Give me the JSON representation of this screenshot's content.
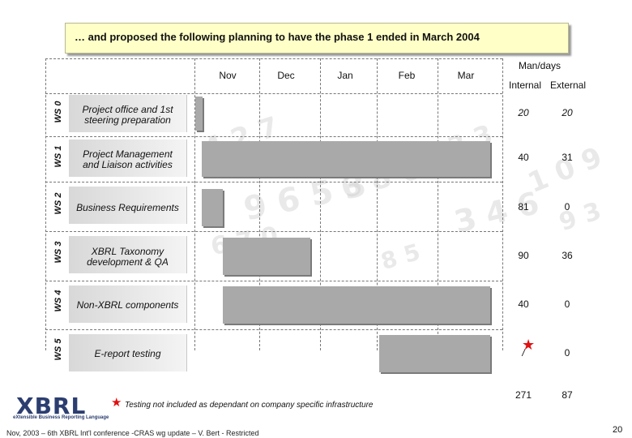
{
  "title": "… and proposed the following planning to have the phase 1 ended in March 2004",
  "months": [
    "Nov",
    "Dec",
    "Jan",
    "Feb",
    "Mar"
  ],
  "manday_header": "Man/days",
  "col_internal": "Internal",
  "col_external": "External",
  "rows": [
    {
      "ws": "WS 0",
      "task_line1": "Project office and 1st",
      "task_line2": "steering preparation",
      "internal": "20",
      "external": "20",
      "italic_values": true
    },
    {
      "ws": "WS 1",
      "task_line1": "Project Management",
      "task_line2": "and Liaison activities",
      "internal": "40",
      "external": "31"
    },
    {
      "ws": "WS 2",
      "task_line1": "Business Requirements",
      "task_line2": "",
      "internal": "81",
      "external": "0"
    },
    {
      "ws": "WS 3",
      "task_line1": "XBRL Taxonomy",
      "task_line2": "development & QA",
      "internal": "90",
      "external": "36"
    },
    {
      "ws": "WS 4",
      "task_line1": "Non-XBRL components",
      "task_line2": "",
      "internal": "40",
      "external": "0"
    },
    {
      "ws": "WS 5",
      "task_line1": "E-report testing",
      "task_line2": "",
      "internal": "/",
      "external": "0"
    }
  ],
  "total_internal": "271",
  "total_external": "87",
  "footnote": "Testing not included as dependant on company specific infrastructure",
  "footer": "Nov, 2003 – 6th XBRL Int'l conference -CRAS wg update – V. Bert - Restricted",
  "page_number": "20",
  "logo_text": "XBRL",
  "logo_sub": "eXtensible Business Reporting Language",
  "colors": {
    "title_bg": "#ffffc8",
    "bar": "#a9a9a9",
    "star": "#e01010"
  }
}
